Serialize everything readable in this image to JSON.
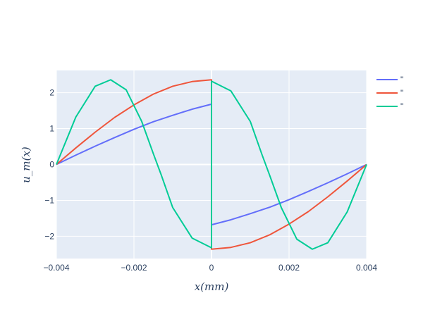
{
  "chart_data": {
    "type": "line",
    "title": "",
    "xlabel": "x(mm)",
    "ylabel": "u_m(x)",
    "xlim": [
      -0.004,
      0.004
    ],
    "ylim": [
      -2.62,
      2.62
    ],
    "x_ticks": [
      -0.004,
      -0.002,
      0,
      0.002,
      0.004
    ],
    "x_tick_labels": [
      "−0.004",
      "−0.002",
      "0",
      "0.002",
      "0.004"
    ],
    "y_ticks": [
      -2,
      -1,
      0,
      1,
      2
    ],
    "y_tick_labels": [
      "−2",
      "−1",
      "0",
      "1",
      "2"
    ],
    "grid": true,
    "legend_position": "top-right",
    "series": [
      {
        "legend_label": "\"",
        "color": "#636efa",
        "x": [
          -0.004,
          -0.0035,
          -0.003,
          -0.0025,
          -0.002,
          -0.0015,
          -0.001,
          -0.0005,
          0,
          0,
          0.0005,
          0.001,
          0.0015,
          0.002,
          0.0025,
          0.003,
          0.0035,
          0.004
        ],
        "y": [
          0,
          0.26,
          0.51,
          0.75,
          0.98,
          1.19,
          1.37,
          1.54,
          1.68,
          -1.68,
          -1.54,
          -1.37,
          -1.19,
          -0.98,
          -0.75,
          -0.51,
          -0.26,
          0
        ]
      },
      {
        "legend_label": "\"",
        "color": "#ef553b",
        "x": [
          -0.004,
          -0.0035,
          -0.003,
          -0.0025,
          -0.002,
          -0.0015,
          -0.001,
          -0.0005,
          0,
          0,
          0.0005,
          0.001,
          0.0015,
          0.002,
          0.0025,
          0.003,
          0.0035,
          0.004
        ],
        "y": [
          0,
          0.46,
          0.9,
          1.31,
          1.66,
          1.96,
          2.18,
          2.31,
          2.36,
          -2.36,
          -2.31,
          -2.18,
          -1.96,
          -1.66,
          -1.31,
          -0.9,
          -0.46,
          0
        ]
      },
      {
        "legend_label": "\"",
        "color": "#00cc96",
        "x": [
          -0.004,
          -0.0035,
          -0.003,
          -0.0026,
          -0.0022,
          -0.0018,
          -0.0015,
          -0.0013,
          -0.001,
          -0.0005,
          0,
          0,
          0.0005,
          0.001,
          0.0013,
          0.0015,
          0.0018,
          0.0022,
          0.0026,
          0.003,
          0.0035,
          0.004
        ],
        "y": [
          0,
          1.32,
          2.18,
          2.36,
          2.08,
          1.2,
          0.3,
          -0.28,
          -1.2,
          -2.05,
          -2.32,
          2.32,
          2.05,
          1.2,
          0.28,
          -0.3,
          -1.2,
          -2.08,
          -2.36,
          -2.18,
          -1.32,
          0
        ]
      }
    ]
  }
}
